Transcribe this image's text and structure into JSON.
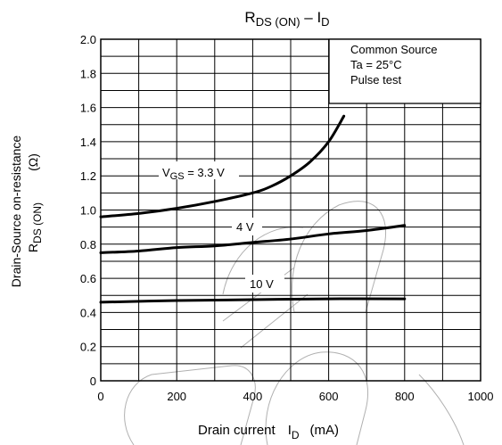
{
  "chart_data": {
    "type": "line",
    "title": {
      "main": "R",
      "main_sub": "DS (ON)",
      "sep": " – I",
      "sep_sub": "D"
    },
    "xlabel": {
      "text": "Drain current",
      "var": "I",
      "var_sub": "D",
      "unit": "(mA)"
    },
    "ylabel": {
      "line1": "Drain-Source on-resistance",
      "line2_var": "R",
      "line2_sub": "DS (ON)",
      "unit": "(Ω)"
    },
    "xlim": [
      0,
      1000
    ],
    "ylim": [
      0,
      2.0
    ],
    "x_ticks": [
      "0",
      "200",
      "400",
      "600",
      "800",
      "1000"
    ],
    "y_ticks": [
      "0",
      "0.2",
      "0.4",
      "0.6",
      "0.8",
      "1.0",
      "1.2",
      "1.4",
      "1.6",
      "1.8",
      "2.0"
    ],
    "grid": true,
    "note": [
      "Common Source",
      "Ta = 25°C",
      "Pulse test"
    ],
    "series": [
      {
        "name": "VGS = 3.3 V",
        "label_var": "V",
        "label_sub": "GS",
        "label_rest": " = 3.3 V",
        "x": [
          0,
          100,
          200,
          300,
          400,
          450,
          500,
          550,
          600,
          640
        ],
        "y": [
          0.96,
          0.98,
          1.01,
          1.05,
          1.1,
          1.14,
          1.2,
          1.28,
          1.4,
          1.55
        ]
      },
      {
        "name": "4 V",
        "label_rest": "4 V",
        "x": [
          0,
          100,
          200,
          300,
          400,
          500,
          600,
          700,
          800
        ],
        "y": [
          0.75,
          0.76,
          0.78,
          0.79,
          0.81,
          0.83,
          0.86,
          0.88,
          0.91
        ]
      },
      {
        "name": "10 V",
        "label_rest": "10 V",
        "x": [
          0,
          200,
          400,
          600,
          800
        ],
        "y": [
          0.46,
          0.47,
          0.475,
          0.48,
          0.48
        ]
      }
    ]
  }
}
